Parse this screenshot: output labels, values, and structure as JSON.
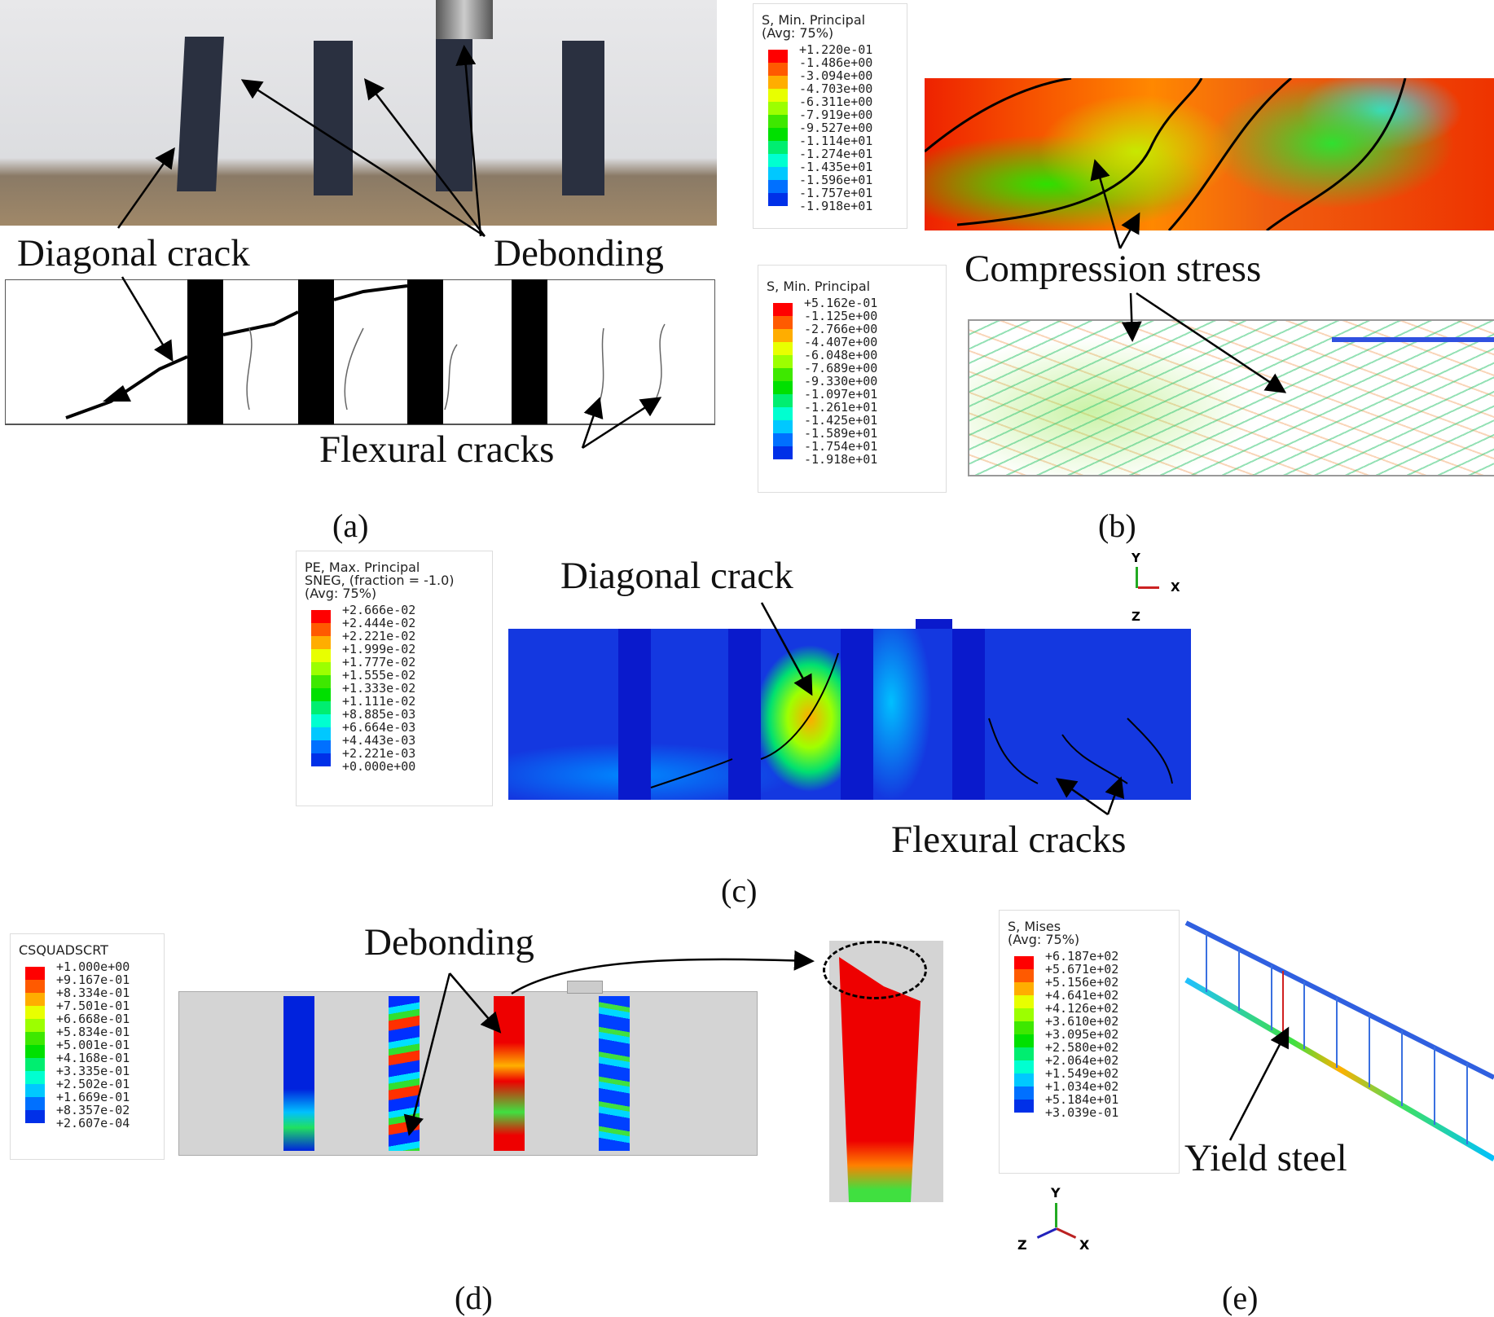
{
  "panels": {
    "a": {
      "caption": "(a)",
      "labels": {
        "diagonal_crack": "Diagonal crack",
        "debonding": "Debonding",
        "flexural_cracks": "Flexural cracks"
      }
    },
    "b": {
      "caption": "(b)",
      "labels": {
        "compression_stress": "Compression stress"
      },
      "legend_top": {
        "title": "S, Min. Principal\n(Avg: 75%)",
        "values": [
          "+1.220e-01",
          "-1.486e+00",
          "-3.094e+00",
          "-4.703e+00",
          "-6.311e+00",
          "-7.919e+00",
          "-9.527e+00",
          "-1.114e+01",
          "-1.274e+01",
          "-1.435e+01",
          "-1.596e+01",
          "-1.757e+01",
          "-1.918e+01"
        ]
      },
      "legend_bottom": {
        "title": "S, Min. Principal",
        "values": [
          "+5.162e-01",
          "-1.125e+00",
          "-2.766e+00",
          "-4.407e+00",
          "-6.048e+00",
          "-7.689e+00",
          "-9.330e+00",
          "-1.097e+01",
          "-1.261e+01",
          "-1.425e+01",
          "-1.589e+01",
          "-1.754e+01",
          "-1.918e+01"
        ]
      }
    },
    "c": {
      "caption": "(c)",
      "labels": {
        "diagonal_crack": "Diagonal crack",
        "flexural_cracks": "Flexural cracks"
      },
      "axes": {
        "y": "Y",
        "x": "X",
        "z": "Z"
      },
      "legend": {
        "title": "PE, Max. Principal\nSNEG, (fraction = -1.0)\n(Avg: 75%)",
        "values": [
          "+2.666e-02",
          "+2.444e-02",
          "+2.221e-02",
          "+1.999e-02",
          "+1.777e-02",
          "+1.555e-02",
          "+1.333e-02",
          "+1.111e-02",
          "+8.885e-03",
          "+6.664e-03",
          "+4.443e-03",
          "+2.221e-03",
          "+0.000e+00"
        ]
      }
    },
    "d": {
      "caption": "(d)",
      "labels": {
        "debonding": "Debonding"
      },
      "legend": {
        "title": "CSQUADSCRT",
        "values": [
          "+1.000e+00",
          "+9.167e-01",
          "+8.334e-01",
          "+7.501e-01",
          "+6.668e-01",
          "+5.834e-01",
          "+5.001e-01",
          "+4.168e-01",
          "+3.335e-01",
          "+2.502e-01",
          "+1.669e-01",
          "+8.357e-02",
          "+2.607e-04"
        ]
      }
    },
    "e": {
      "caption": "(e)",
      "labels": {
        "yield_steel": "Yield steel"
      },
      "axes": {
        "y": "Y",
        "x": "X",
        "z": "Z"
      },
      "legend": {
        "title": "S, Mises\n(Avg: 75%)",
        "values": [
          "+6.187e+02",
          "+5.671e+02",
          "+5.156e+02",
          "+4.641e+02",
          "+4.126e+02",
          "+3.610e+02",
          "+3.095e+02",
          "+2.580e+02",
          "+2.064e+02",
          "+1.549e+02",
          "+1.034e+02",
          "+5.184e+01",
          "+3.039e-01"
        ]
      }
    }
  },
  "colors": {
    "contour_scale": [
      "#ff0000",
      "#ff5a00",
      "#ffad00",
      "#e8ff00",
      "#9cff00",
      "#3ee800",
      "#00e000",
      "#00ee70",
      "#00ffd0",
      "#00c8ff",
      "#0070ff",
      "#0030e8",
      "#0000ff"
    ],
    "beam_gray": "#d4d4d4",
    "text": "#111111"
  }
}
